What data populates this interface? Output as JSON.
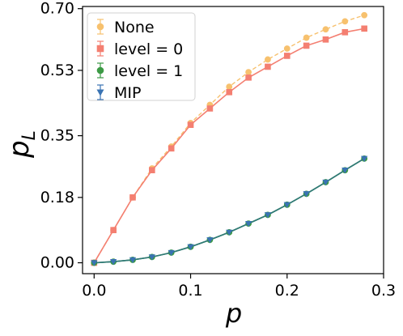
{
  "chart_data": {
    "type": "line",
    "title": "",
    "xlabel": "p",
    "ylabel_main": "p",
    "ylabel_sub": "L",
    "xlim": [
      -0.012,
      0.3
    ],
    "ylim": [
      -0.03,
      0.706
    ],
    "xticks": [
      0.0,
      0.1,
      0.2,
      0.3
    ],
    "xtick_labels": [
      "0.0",
      "0.1",
      "0.2",
      "0.3"
    ],
    "yticks": [
      0.0,
      0.18,
      0.35,
      0.53,
      0.7
    ],
    "ytick_labels": [
      "0.00",
      "0.18",
      "0.35",
      "0.53",
      "0.70"
    ],
    "legend_position": "top-left",
    "x": [
      0.0,
      0.02,
      0.04,
      0.06,
      0.08,
      0.1,
      0.12,
      0.14,
      0.16,
      0.18,
      0.2,
      0.22,
      0.24,
      0.26,
      0.28
    ],
    "series": [
      {
        "name": "None",
        "color": "#f7c16e",
        "marker": "circle",
        "values": [
          0.0,
          0.09,
          0.18,
          0.26,
          0.32,
          0.385,
          0.435,
          0.485,
          0.525,
          0.56,
          0.59,
          0.62,
          0.643,
          0.665,
          0.682
        ]
      },
      {
        "name": "level = 0",
        "color": "#f47f71",
        "marker": "square",
        "values": [
          0.0,
          0.09,
          0.18,
          0.255,
          0.315,
          0.38,
          0.425,
          0.47,
          0.51,
          0.54,
          0.57,
          0.598,
          0.615,
          0.635,
          0.645
        ]
      },
      {
        "name": "level = 1",
        "color": "#3c9a45",
        "marker": "circle",
        "values": [
          0.0,
          0.003,
          0.008,
          0.016,
          0.028,
          0.044,
          0.063,
          0.084,
          0.108,
          0.132,
          0.16,
          0.19,
          0.222,
          0.255,
          0.287
        ]
      },
      {
        "name": "MIP",
        "color": "#3a73b3",
        "marker": "triangle-down",
        "values": [
          0.0,
          0.003,
          0.008,
          0.016,
          0.028,
          0.044,
          0.063,
          0.084,
          0.108,
          0.132,
          0.16,
          0.19,
          0.222,
          0.255,
          0.287
        ]
      }
    ],
    "overlap_line_color": "#2f7a73",
    "grid": false
  }
}
